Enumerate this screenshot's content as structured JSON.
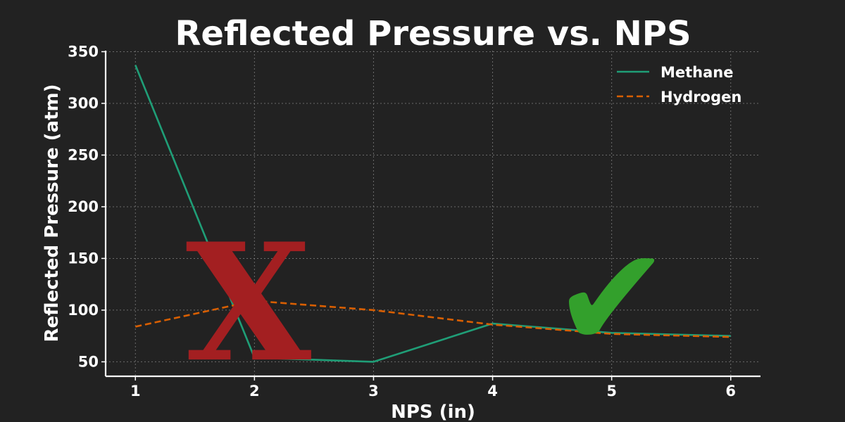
{
  "chart_data": {
    "type": "line",
    "title": "Reflected Pressure vs. NPS",
    "xlabel": "NPS (in)",
    "ylabel": "Reflected Pressure (atm)",
    "x": [
      1,
      2,
      3,
      4,
      5,
      6
    ],
    "x_ticks": [
      "1",
      "2",
      "3",
      "4",
      "5",
      "6"
    ],
    "y_ticks": [
      "50",
      "100",
      "150",
      "200",
      "250",
      "300",
      "350"
    ],
    "y_tick_values": [
      50,
      100,
      150,
      200,
      250,
      300,
      350
    ],
    "xlim": [
      0.75,
      6.25
    ],
    "ylim": [
      36,
      351
    ],
    "grid": true,
    "legend_position": "top-right",
    "series": [
      {
        "name": "Methane",
        "values": [
          337,
          54,
          50,
          87,
          78,
          75
        ],
        "color": "#1f9e77",
        "style": "solid"
      },
      {
        "name": "Hydrogen",
        "values": [
          84,
          109,
          100,
          86,
          77,
          74
        ],
        "color": "#d95f02",
        "style": "dashed"
      }
    ],
    "annotations": [
      {
        "icon": "cross-mark-icon",
        "glyph": "X",
        "color": "#a31f21",
        "x": 1.95,
        "y": 108
      },
      {
        "icon": "check-mark-icon",
        "glyph": "✔",
        "color": "#33a02c",
        "x": 5.0,
        "y": 112
      }
    ]
  }
}
